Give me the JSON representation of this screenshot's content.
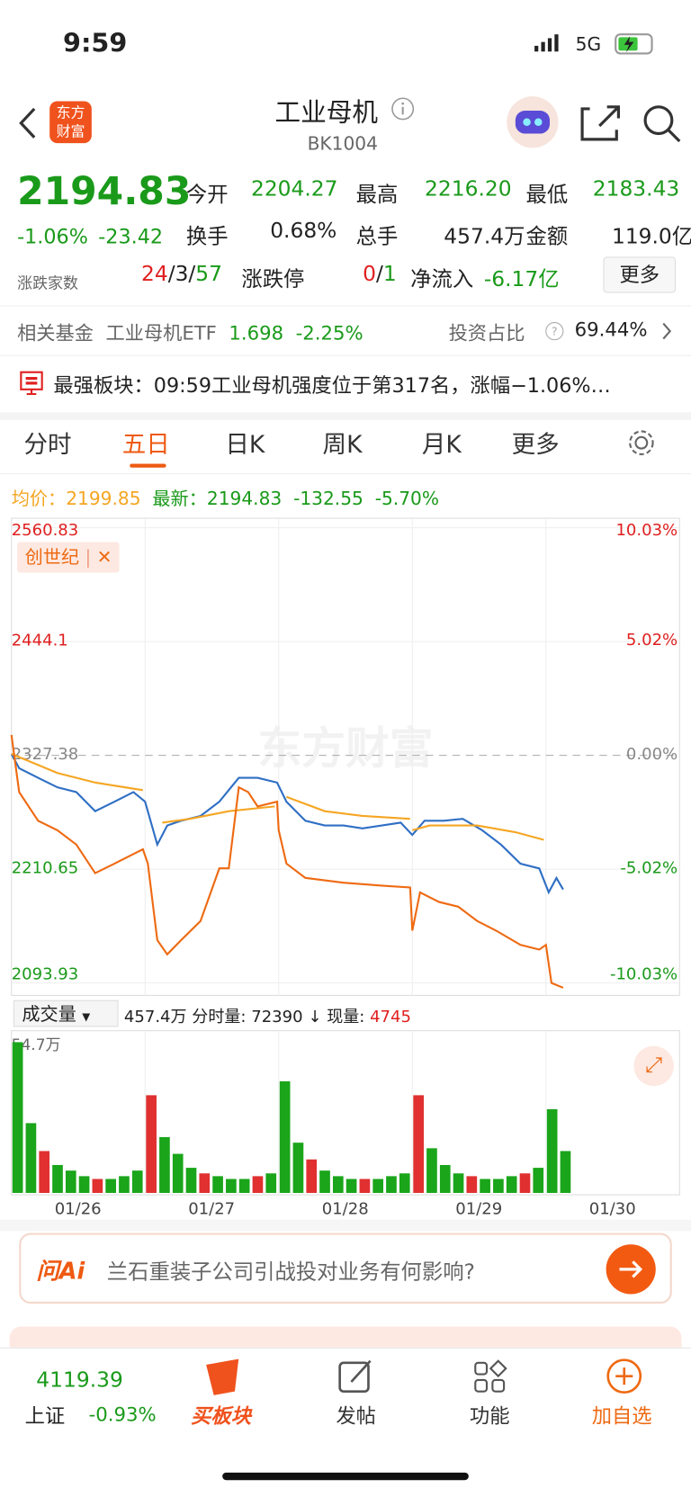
{
  "status": {
    "time": "9:59",
    "network": "5G"
  },
  "header": {
    "title": "工业母机",
    "code": "BK1004",
    "logo": "东方财富"
  },
  "quote": {
    "price": "2194.83",
    "change_pct": "-1.06%",
    "change": "-23.42",
    "fields": [
      {
        "label": "今开",
        "value": "2204.27"
      },
      {
        "label": "最高",
        "value": "2216.20"
      },
      {
        "label": "最低",
        "value": "2183.43"
      },
      {
        "label": "换手",
        "value": "0.68%"
      },
      {
        "label": "总手",
        "value": "457.4万"
      },
      {
        "label": "金额",
        "value": "119.0亿"
      }
    ],
    "breadth_label": "涨跌家数",
    "breadth": [
      "24",
      "3",
      "57"
    ],
    "limit_label": "涨跌停",
    "limit": [
      "0",
      "1"
    ],
    "inflow_label": "净流入",
    "inflow": "-6.17亿",
    "more": "更多"
  },
  "fund": {
    "label": "相关基金",
    "name": "工业母机ETF",
    "price": "1.698",
    "change": "-2.25%",
    "ratio_label": "投资占比",
    "ratio": "69.44%"
  },
  "news": {
    "text": "最强板块：09:59工业母机强度位于第317名，涨幅−1.06%…"
  },
  "tabs": [
    "分时",
    "五日",
    "日K",
    "周K",
    "月K",
    "更多"
  ],
  "summary": {
    "avg_label": "均价：",
    "avg": "2199.85",
    "last_label": "最新：",
    "last": "2194.83",
    "chg": "-132.55",
    "chg_pct": "-5.70%"
  },
  "volume_bar": {
    "select": "成交量",
    "total": "457.4万",
    "tick_label": "分时量:",
    "tick": "72390",
    "now_label": "现量:",
    "now": "4745"
  },
  "chart_data": [
    {
      "type": "line",
      "xlim": [
        0,
        1205
      ],
      "ylim": [
        2093.93,
        2560.83
      ],
      "yticks": [
        2093.93,
        2210.65,
        2327.38,
        2444.1,
        2560.83
      ],
      "y2lim": [
        -10.03,
        10.03
      ],
      "y2ticks": [
        {
          "value": -10.03,
          "label": "-10.03%"
        },
        {
          "value": -5.02,
          "label": "-5.02%"
        },
        {
          "value": 0,
          "label": "0.00%"
        },
        {
          "value": 5.02,
          "label": "5.02%"
        },
        {
          "value": 10.03,
          "label": "10.03%"
        }
      ],
      "grid": true,
      "series": [
        {
          "color": "#2f6fc4",
          "x": [
            0,
            14,
            48,
            83,
            117,
            151,
            186,
            220,
            241,
            263,
            281,
            306,
            341,
            375,
            410,
            444,
            479,
            496,
            530,
            565,
            599,
            633,
            668,
            702,
            723,
            745,
            780,
            814,
            849,
            883,
            918,
            952,
            969,
            983,
            995
          ],
          "values": [
            2328.8,
            2314.2,
            2304.4,
            2294.6,
            2289.7,
            2270.1,
            2279.9,
            2289.7,
            2279.9,
            2235.9,
            2255.4,
            2260.3,
            2265.2,
            2279.9,
            2304.4,
            2304.4,
            2299.5,
            2279.9,
            2260.3,
            2255.4,
            2255.4,
            2252.5,
            2255.4,
            2258.4,
            2245.7,
            2260.3,
            2260.3,
            2262.3,
            2250.5,
            2235.9,
            2216.3,
            2211.4,
            2186.9,
            2201.6,
            2189.9
          ]
        },
        {
          "color": "#f5a623",
          "x": [
            0,
            83,
            151,
            237,
            240,
            272,
            322,
            392,
            475,
            480,
            496,
            565,
            633,
            719,
            722,
            723,
            754,
            840,
            909,
            960
          ],
          "values": [
            2328.8,
            2309.3,
            2299.5,
            2291.7,
            null,
            2258.4,
            2262.3,
            2270.1,
            2275.0,
            null,
            2284.8,
            2270.1,
            2265.2,
            2262.3,
            null,
            2250.5,
            2255.4,
            2255.4,
            2248.6,
            2240.8
          ]
        },
        {
          "name": "创世纪",
          "color": "#ee6a12",
          "axis": "y2",
          "x": [
            0,
            14,
            48,
            83,
            117,
            151,
            186,
            220,
            237,
            246,
            263,
            281,
            306,
            341,
            375,
            392,
            410,
            427,
            444,
            479,
            482,
            496,
            530,
            599,
            668,
            719,
            723,
            737,
            771,
            806,
            840,
            874,
            918,
            952,
            964,
            974,
            995
          ],
          "values": [
            0.9,
            -1.62,
            -2.88,
            -3.3,
            -3.93,
            -5.19,
            -4.77,
            -4.35,
            -4.14,
            -4.77,
            -8.14,
            -8.77,
            -8.14,
            -7.3,
            -4.98,
            -4.98,
            -1.41,
            -1.62,
            -2.25,
            -2.04,
            -3.3,
            -4.77,
            -5.4,
            -5.61,
            -5.74,
            -5.82,
            -7.72,
            -6.04,
            -6.46,
            -6.67,
            -7.3,
            -7.72,
            -8.35,
            -8.56,
            -8.35,
            -10.03,
            -10.24
          ]
        }
      ]
    },
    {
      "type": "bar",
      "xlim": [
        0,
        1205
      ],
      "ylim": [
        0,
        54.7
      ],
      "yticks": [
        {
          "value": 54.7,
          "label": "54.7万"
        }
      ],
      "color": "#1aa51a",
      "xticks": [
        {
          "value": 120,
          "label": "01/26"
        },
        {
          "value": 361,
          "label": "01/27"
        },
        {
          "value": 602,
          "label": "01/28"
        },
        {
          "value": 843,
          "label": "01/29"
        },
        {
          "value": 1084,
          "label": "01/30"
        }
      ],
      "x": [
        0,
        24,
        48,
        72,
        96,
        120,
        144,
        168,
        192,
        216,
        241,
        265,
        289,
        313,
        337,
        361,
        385,
        409,
        433,
        457,
        482,
        506,
        530,
        554,
        578,
        602,
        626,
        650,
        674,
        698,
        723,
        747,
        771,
        795,
        819,
        843,
        867,
        891,
        915,
        939,
        964,
        988
      ],
      "values": [
        54,
        25,
        15,
        10,
        8,
        6,
        5,
        5,
        6,
        8,
        35,
        20,
        14,
        9,
        7,
        6,
        5,
        5,
        6,
        7,
        40,
        18,
        12,
        8,
        6,
        5,
        5,
        5,
        6,
        7,
        35,
        16,
        10,
        7,
        6,
        5,
        5,
        6,
        7,
        9,
        30,
        15
      ]
    }
  ],
  "ai": {
    "logo": "问Ai",
    "prompt": "兰石重装子公司引战投对业务有何影响?"
  },
  "ticker": {
    "value": "4119.39",
    "name": "上证",
    "change": "-0.93%"
  },
  "nav": [
    "买板块",
    "发帖",
    "功能",
    "加自选"
  ]
}
